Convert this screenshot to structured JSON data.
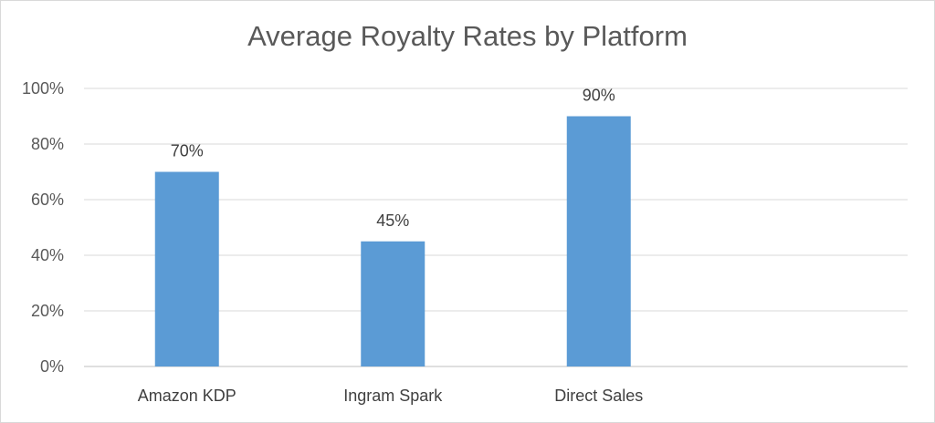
{
  "chart_data": {
    "type": "bar",
    "title": "Average Royalty Rates by Platform",
    "categories": [
      "Amazon KDP",
      "Ingram Spark",
      "Direct Sales"
    ],
    "values": [
      70,
      45,
      90
    ],
    "value_labels": [
      "70%",
      "45%",
      "90%"
    ],
    "ylim": [
      0,
      100
    ],
    "yticks": [
      0,
      20,
      40,
      60,
      80,
      100
    ],
    "ytick_labels": [
      "0%",
      "20%",
      "40%",
      "60%",
      "80%",
      "100%"
    ],
    "xlabel": "",
    "ylabel": "",
    "grid": true,
    "legend": "none",
    "bar_color": "#5b9bd5",
    "grid_color": "#d9d9d9"
  }
}
